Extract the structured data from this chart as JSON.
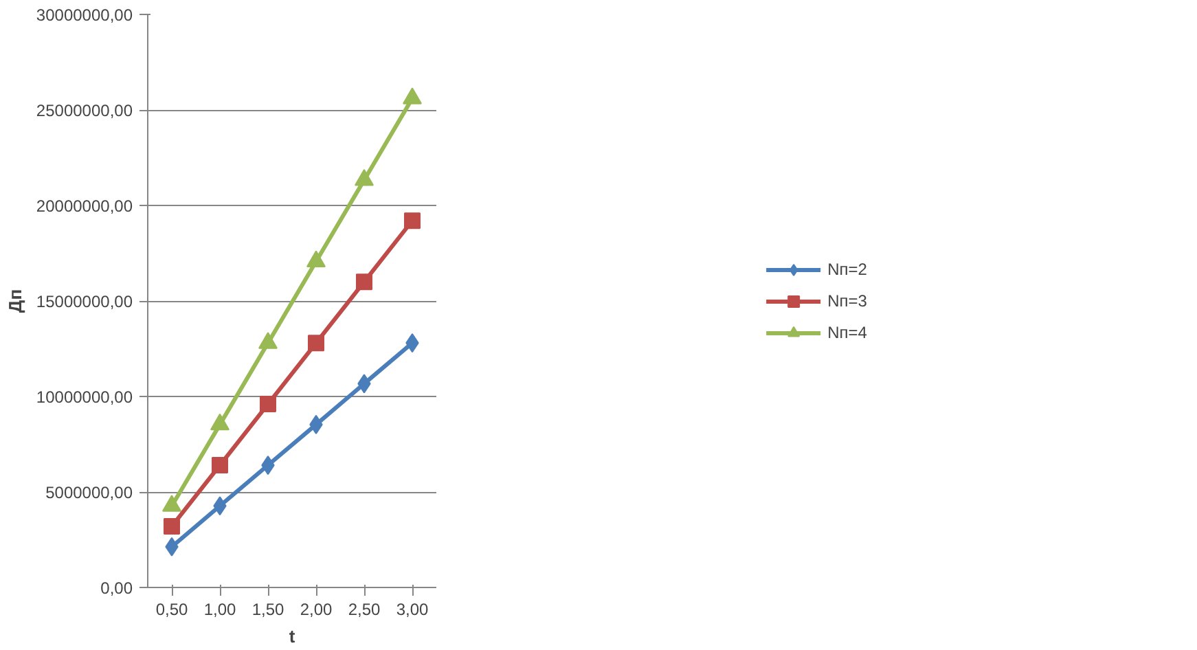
{
  "chart_data": {
    "type": "line",
    "xlabel": "t",
    "ylabel": "Дп",
    "categories": [
      "0,50",
      "1,00",
      "1,50",
      "2,00",
      "2,50",
      "3,00"
    ],
    "ylim": [
      0,
      30000000
    ],
    "yticks": [
      {
        "value": 0,
        "label": "0,00"
      },
      {
        "value": 5000000,
        "label": "5000000,00"
      },
      {
        "value": 10000000,
        "label": "10000000,00"
      },
      {
        "value": 15000000,
        "label": "15000000,00"
      },
      {
        "value": 20000000,
        "label": "20000000,00"
      },
      {
        "value": 25000000,
        "label": "25000000,00"
      },
      {
        "value": 30000000,
        "label": "30000000,00"
      }
    ],
    "grid": "y",
    "legend": "right",
    "line_style": "solid",
    "series": [
      {
        "name": "Nп=2",
        "color": "#4a7ebb",
        "marker": "diamond",
        "values": [
          2130000,
          4270000,
          6400000,
          8530000,
          10670000,
          12800000
        ]
      },
      {
        "name": "Nп=3",
        "color": "#be4b48",
        "marker": "square",
        "values": [
          3200000,
          6400000,
          9600000,
          12800000,
          16000000,
          19200000
        ]
      },
      {
        "name": "Nп=4",
        "color": "#98b954",
        "marker": "triangle",
        "values": [
          4270000,
          8530000,
          12800000,
          17070000,
          21330000,
          25600000
        ]
      }
    ]
  }
}
